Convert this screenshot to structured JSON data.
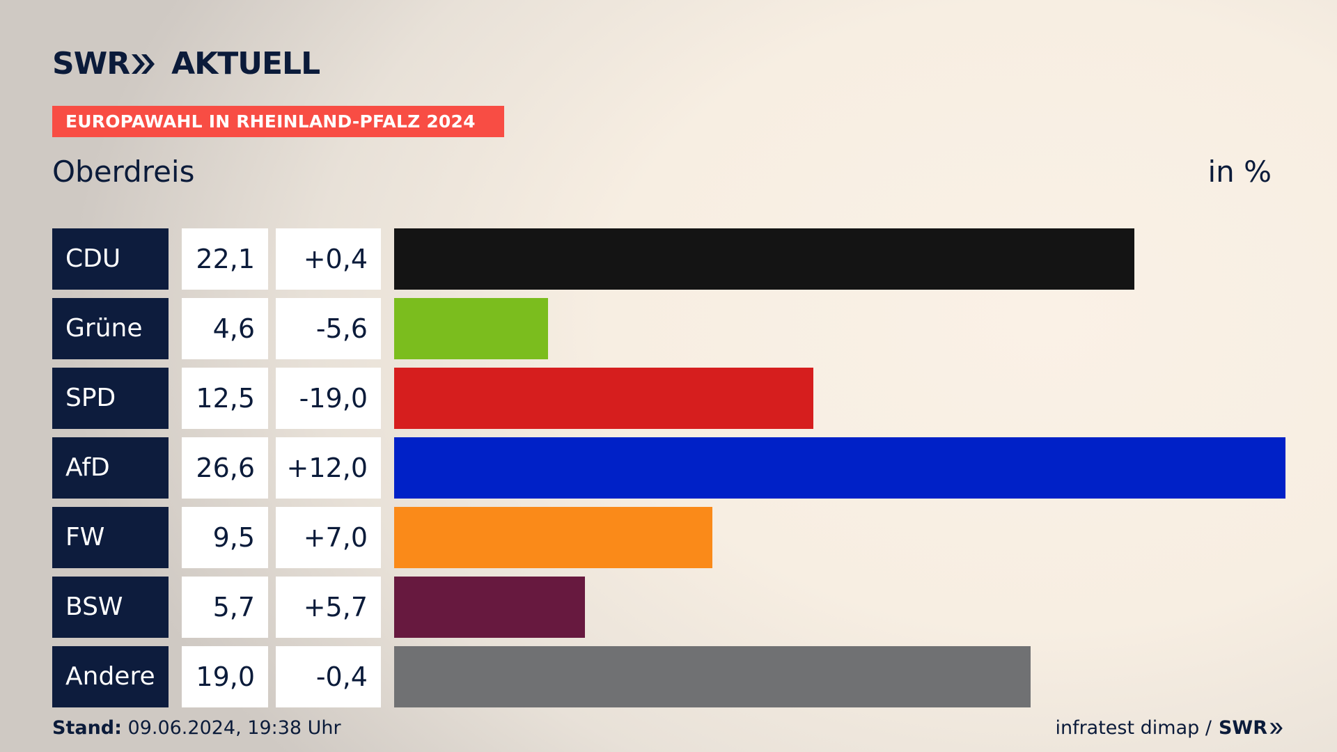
{
  "header": {
    "logo_swr": "SWR",
    "logo_aktuell": "AKTUELL",
    "banner": "EUROPAWAHL IN RHEINLAND-PFALZ 2024",
    "region": "Oberdreis",
    "unit": "in %"
  },
  "colors": {
    "banner": "#f84d44",
    "label_bg": "#0d1c3d",
    "text": "#0b1b3a"
  },
  "chart_data": {
    "type": "bar",
    "orientation": "horizontal",
    "title": "Oberdreis",
    "unit": "in %",
    "xlim": [
      0,
      26.6
    ],
    "categories": [
      "CDU",
      "Grüne",
      "SPD",
      "AfD",
      "FW",
      "BSW",
      "Andere"
    ],
    "values": [
      22.1,
      4.6,
      12.5,
      26.6,
      9.5,
      5.7,
      19.0
    ],
    "values_label": [
      "22,1",
      "4,6",
      "12,5",
      "26,6",
      "9,5",
      "5,7",
      "19,0"
    ],
    "changes": [
      0.4,
      -5.6,
      -19.0,
      12.0,
      7.0,
      5.7,
      -0.4
    ],
    "changes_label": [
      "+0,4",
      "-5,6",
      "-19,0",
      "+12,0",
      "+7,0",
      "+5,7",
      "-0,4"
    ],
    "bar_colors": [
      "#141414",
      "#7bbd1e",
      "#d61e1e",
      "#0021c7",
      "#fa8a19",
      "#67193f",
      "#707173"
    ]
  },
  "footer": {
    "stand_label": "Stand:",
    "stand_value": "09.06.2024, 19:38 Uhr",
    "source": "infratest dimap /",
    "source_logo": "SWR"
  }
}
